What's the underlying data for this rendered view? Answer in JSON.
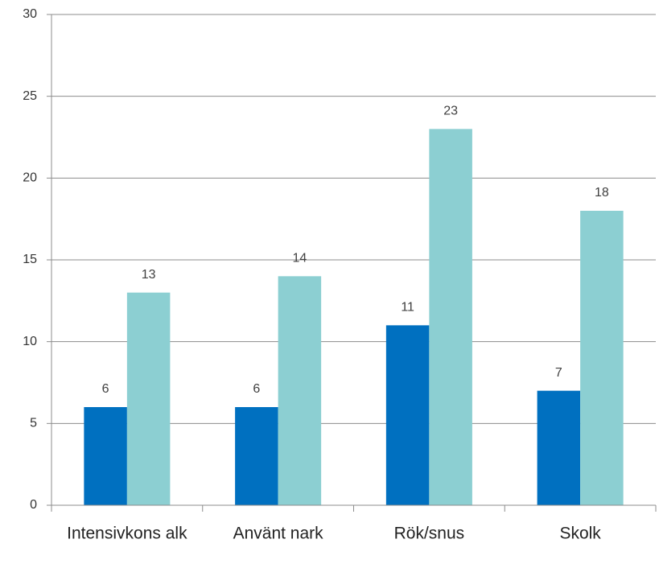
{
  "chart_data": {
    "type": "bar",
    "categories": [
      "Intensivkons alk",
      "Använt nark",
      "Rök/snus",
      "Skolk"
    ],
    "series": [
      {
        "color": "#0070c0",
        "values": [
          6,
          6,
          11,
          7
        ]
      },
      {
        "color": "#8ccfd2",
        "values": [
          13,
          14,
          23,
          18
        ]
      }
    ],
    "ylim": [
      0,
      30
    ],
    "yticks": [
      0,
      5,
      10,
      15,
      20,
      25,
      30
    ],
    "grid": true
  }
}
